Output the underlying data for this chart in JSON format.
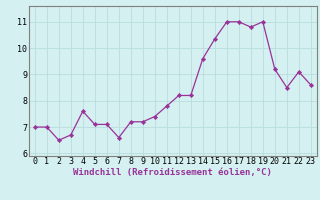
{
  "x": [
    0,
    1,
    2,
    3,
    4,
    5,
    6,
    7,
    8,
    9,
    10,
    11,
    12,
    13,
    14,
    15,
    16,
    17,
    18,
    19,
    20,
    21,
    22,
    23
  ],
  "y": [
    7.0,
    7.0,
    6.5,
    6.7,
    7.6,
    7.1,
    7.1,
    6.6,
    7.2,
    7.2,
    7.4,
    7.8,
    8.2,
    8.2,
    9.6,
    10.35,
    11.0,
    11.0,
    10.8,
    11.0,
    9.2,
    8.5,
    9.1,
    8.6
  ],
  "line_color": "#993399",
  "marker": "D",
  "marker_size": 2.2,
  "bg_color": "#d4f0f0",
  "grid_color": "#b8dede",
  "spine_color": "#808080",
  "xlabel": "Windchill (Refroidissement éolien,°C)",
  "xlim": [
    -0.5,
    23.5
  ],
  "ylim": [
    5.9,
    11.6
  ],
  "yticks": [
    6,
    7,
    8,
    9,
    10,
    11
  ],
  "xticks": [
    0,
    1,
    2,
    3,
    4,
    5,
    6,
    7,
    8,
    9,
    10,
    11,
    12,
    13,
    14,
    15,
    16,
    17,
    18,
    19,
    20,
    21,
    22,
    23
  ],
  "xlabel_color": "#993399",
  "tick_color": "#000000",
  "label_fontsize": 6.5,
  "tick_fontsize": 6.0
}
